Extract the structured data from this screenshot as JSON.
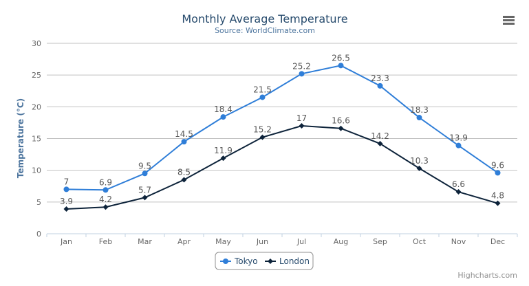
{
  "chart_data": {
    "type": "line",
    "title": "Monthly Average Temperature",
    "subtitle": "Source: WorldClimate.com",
    "xlabel": "",
    "ylabel": "Temperature (°C)",
    "categories": [
      "Jan",
      "Feb",
      "Mar",
      "Apr",
      "May",
      "Jun",
      "Jul",
      "Aug",
      "Sep",
      "Oct",
      "Nov",
      "Dec"
    ],
    "ylim": [
      0,
      30
    ],
    "yticks": [
      0,
      5,
      10,
      15,
      20,
      25,
      30
    ],
    "grid": true,
    "legend_placement": "bottom-center",
    "series": [
      {
        "name": "Tokyo",
        "color": "#2f7ed8",
        "marker": "circle",
        "values": [
          7.0,
          6.9,
          9.5,
          14.5,
          18.4,
          21.5,
          25.2,
          26.5,
          23.3,
          18.3,
          13.9,
          9.6
        ]
      },
      {
        "name": "London",
        "color": "#0d233a",
        "marker": "diamond",
        "values": [
          3.9,
          4.2,
          5.7,
          8.5,
          11.9,
          15.2,
          17.0,
          16.6,
          14.2,
          10.3,
          6.6,
          4.8
        ]
      }
    ]
  },
  "credits": "Highcharts.com",
  "menu_icon": "hamburger-menu-icon"
}
